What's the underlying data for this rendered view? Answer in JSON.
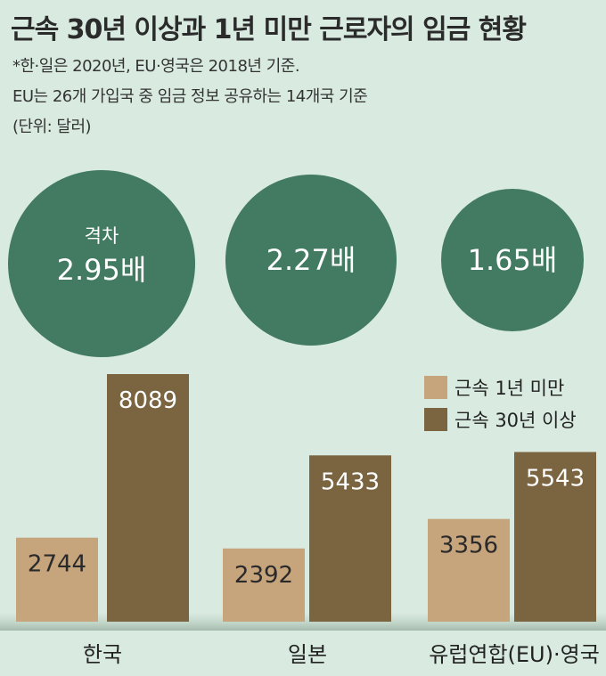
{
  "title": "근속 30년 이상과 1년 미만 근로자의 임금 현황",
  "notes": [
    "*한·일은 2020년, EU·영국은 2018년 기준.",
    " EU는 26개 가입국 중 임금 정보 공유하는 14개국 기준",
    "(단위: 달러)"
  ],
  "colors": {
    "background": "#d9ebe0",
    "bubble": "#437b62",
    "under_1yr": "#c6a47c",
    "over_30yr": "#7b6540",
    "value_text_light": "#ffffff",
    "value_text_dark": "#2a2a2a"
  },
  "chart_data": {
    "type": "bar",
    "categories": [
      "한국",
      "일본",
      "유럽연합(EU)·영국"
    ],
    "series": [
      {
        "name": "근속 1년 미만",
        "values": [
          2744,
          2392,
          3356
        ]
      },
      {
        "name": "근속 30년 이상",
        "values": [
          8089,
          5433,
          5543
        ]
      }
    ],
    "ratio_label": "격차",
    "ratios": [
      "2.95배",
      "2.27배",
      "1.65배"
    ],
    "legend_position": "right, below bubbles",
    "ylim": [
      0,
      8089
    ],
    "grid": false
  }
}
